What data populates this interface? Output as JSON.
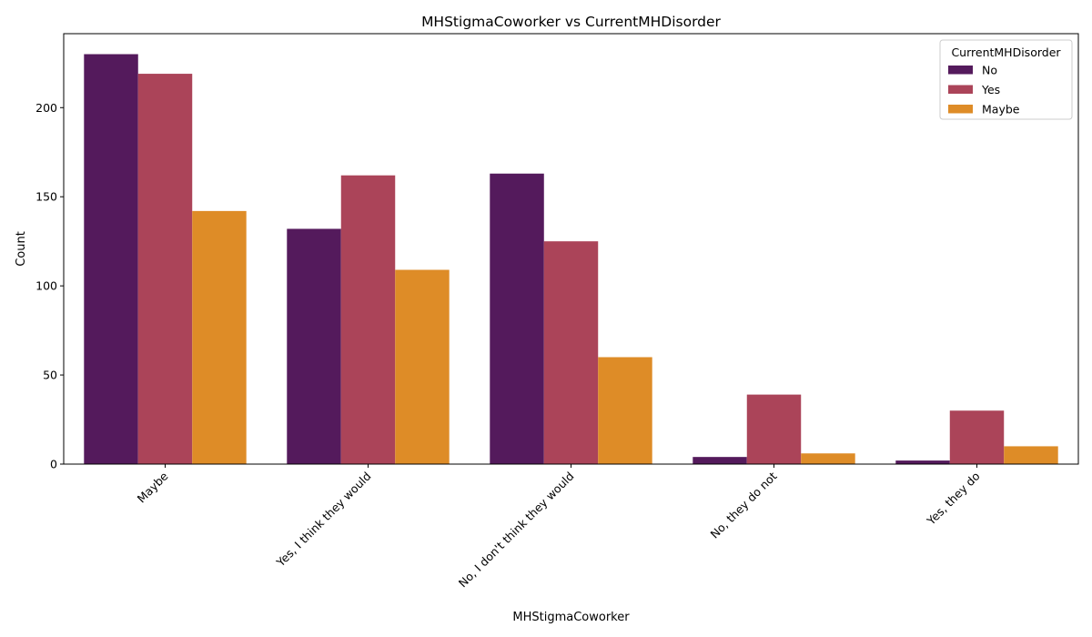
{
  "chart_data": {
    "type": "bar",
    "title": "MHStigmaCoworker vs CurrentMHDisorder",
    "xlabel": "MHStigmaCoworker",
    "ylabel": "Count",
    "categories": [
      "Maybe",
      "Yes, I think they would",
      "No, I don't think they would",
      "No, they do not",
      "Yes, they do"
    ],
    "series": [
      {
        "name": "No",
        "color": "#541a5c",
        "values": [
          230,
          132,
          163,
          4,
          2
        ]
      },
      {
        "name": "Yes",
        "color": "#ab4459",
        "values": [
          219,
          162,
          125,
          39,
          30
        ]
      },
      {
        "name": "Maybe",
        "color": "#de8c27",
        "values": [
          142,
          109,
          60,
          6,
          10
        ]
      }
    ],
    "ylim": [
      0,
      241.5
    ],
    "yticks": [
      0,
      50,
      100,
      150,
      200
    ],
    "grid": false,
    "legend": {
      "title": "CurrentMHDisorder",
      "placement": "top-right"
    }
  }
}
